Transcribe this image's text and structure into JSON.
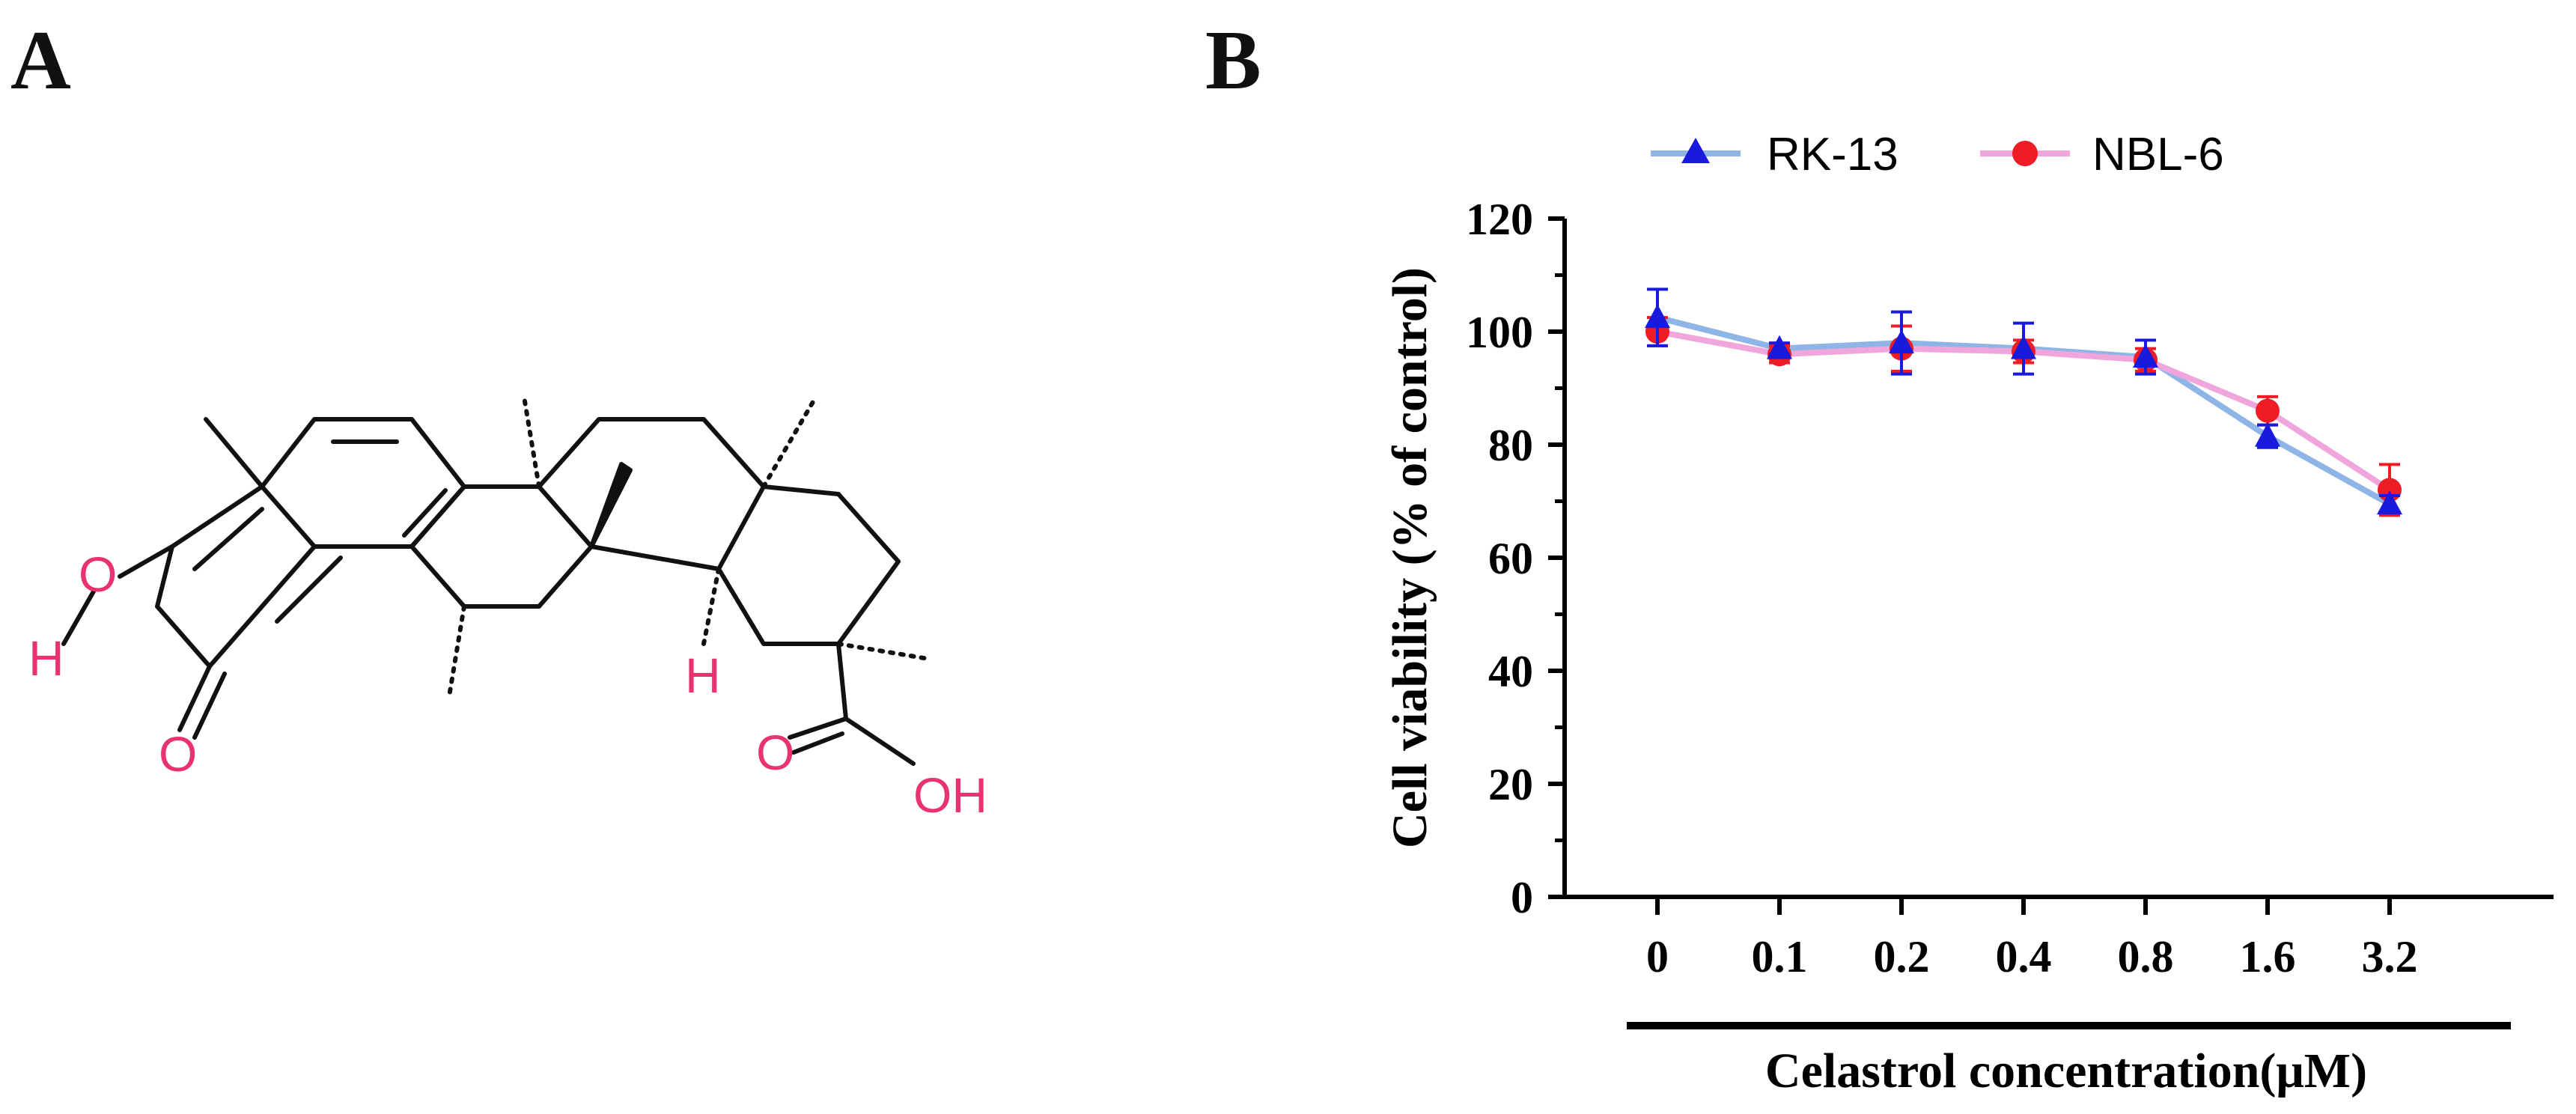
{
  "panels": {
    "a_label": "A",
    "b_label": "B"
  },
  "molecule": {
    "atom_labels": {
      "hydroxyl_o": "O",
      "hydroxyl_h": "H",
      "ketone_o": "O",
      "ring_h": "H",
      "acid_o": "O",
      "acid_oh": "OH"
    },
    "atom_color": "#e8336e"
  },
  "chart_data": {
    "type": "line",
    "categories": [
      "0",
      "0.1",
      "0.2",
      "0.4",
      "0.8",
      "1.6",
      "3.2"
    ],
    "xlabel": "Celastrol concentration(μM)",
    "ylabel": "Cell viability (% of control)",
    "ylim": [
      0,
      120
    ],
    "yticks": [
      "0",
      "20",
      "40",
      "60",
      "80",
      "100",
      "120"
    ],
    "grid": false,
    "legend_position": "top",
    "series": [
      {
        "name": "RK-13",
        "marker": "triangle",
        "marker_color": "#1a1adc",
        "line_color": "#8fb4e6",
        "values": [
          102.5,
          97.0,
          98.0,
          97.0,
          95.5,
          81.5,
          69.5
        ],
        "errors": [
          5.0,
          1.0,
          5.5,
          4.5,
          3.0,
          2.0,
          1.5
        ]
      },
      {
        "name": "NBL-6",
        "marker": "circle",
        "marker_color": "#ee1c24",
        "line_color": "#f0a6dc",
        "values": [
          100.0,
          96.0,
          97.0,
          96.5,
          95.0,
          86.0,
          72.0
        ],
        "errors": [
          2.5,
          1.5,
          4.0,
          2.0,
          2.0,
          2.5,
          4.5
        ]
      }
    ]
  }
}
